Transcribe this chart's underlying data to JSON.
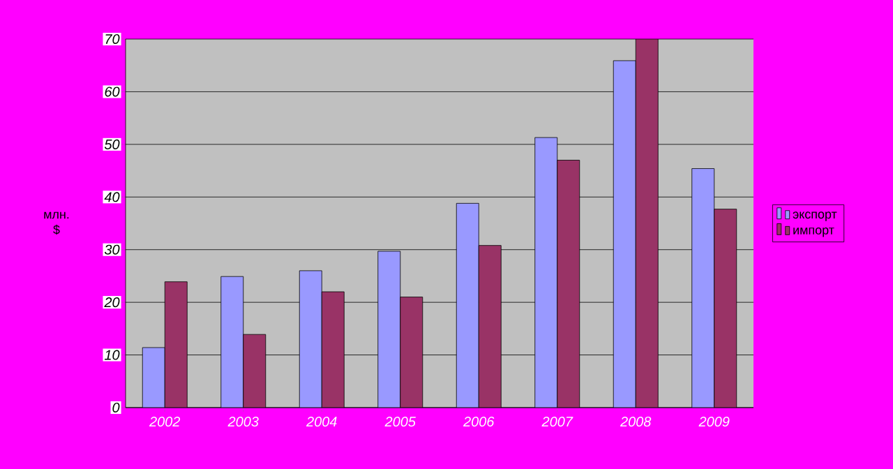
{
  "chart_data": {
    "type": "bar",
    "ylabel": "млн. $",
    "categories": [
      "2002",
      "2003",
      "2004",
      "2005",
      "2006",
      "2007",
      "2008",
      "2009"
    ],
    "series": [
      {
        "name": "экспорт",
        "color": "#9999ff",
        "values": [
          11.4,
          24.9,
          26.0,
          29.7,
          38.8,
          51.3,
          65.9,
          45.4
        ]
      },
      {
        "name": "импорт",
        "color": "#993366",
        "values": [
          23.9,
          13.9,
          22.0,
          21.0,
          30.8,
          47.0,
          70.0,
          37.7
        ]
      }
    ],
    "ylim": [
      0,
      70
    ],
    "yticks": [
      0,
      10,
      20,
      30,
      40,
      50,
      60,
      70
    ],
    "grid": "y",
    "legend": "right"
  }
}
